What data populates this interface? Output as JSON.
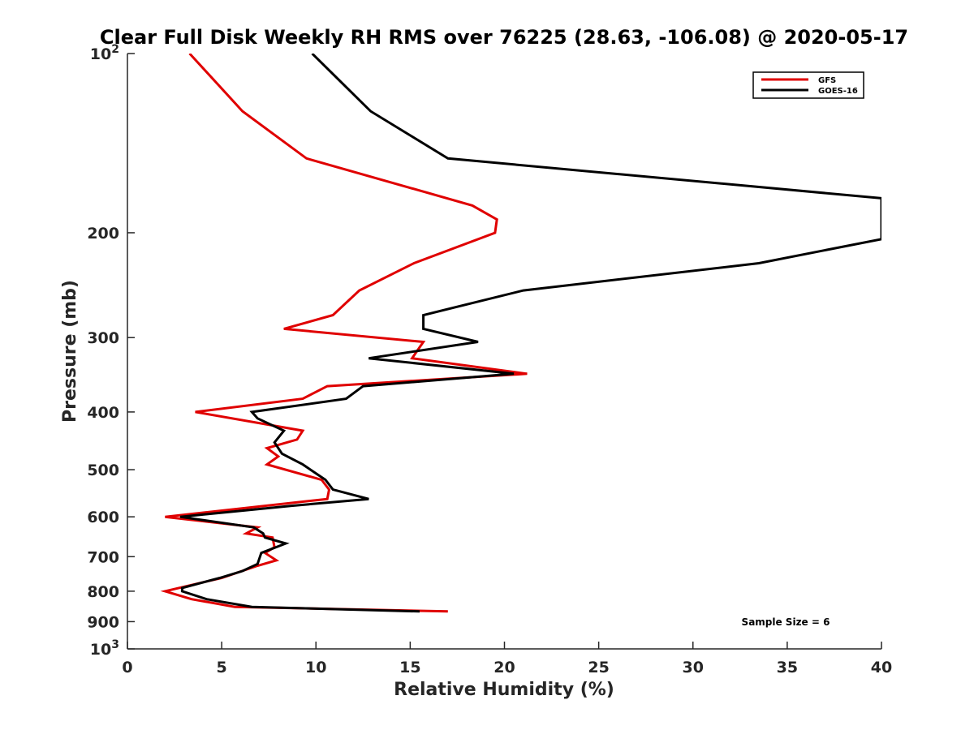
{
  "chart_data": {
    "type": "line",
    "title": "Clear Full Disk Weekly RH RMS over 76225 (28.63, -106.08) @ 2020-05-17",
    "xlabel": "Relative Humidity (%)",
    "ylabel": "Pressure (mb)",
    "xlim": [
      0,
      40
    ],
    "ylim": [
      100,
      1000
    ],
    "y_scale": "log",
    "y_reversed": true,
    "grid": false,
    "legend_position": "top-right",
    "x_ticks": [
      "0",
      "5",
      "10",
      "15",
      "20",
      "25",
      "30",
      "35",
      "40"
    ],
    "y_ticks": [
      {
        "value": 100,
        "base": "10",
        "exp": "2"
      },
      {
        "value": 200,
        "label": "200"
      },
      {
        "value": 300,
        "label": "300"
      },
      {
        "value": 400,
        "label": "400"
      },
      {
        "value": 500,
        "label": "500"
      },
      {
        "value": 600,
        "label": "600"
      },
      {
        "value": 700,
        "label": "700"
      },
      {
        "value": 800,
        "label": "800"
      },
      {
        "value": 900,
        "label": "900"
      },
      {
        "value": 1000,
        "base": "10",
        "exp": "3"
      }
    ],
    "annotation": "Sample Size = 6",
    "series": [
      {
        "name": "GFS",
        "color": "#e00000",
        "points": [
          [
            3.3,
            100
          ],
          [
            6.1,
            125
          ],
          [
            9.5,
            150
          ],
          [
            18.3,
            180
          ],
          [
            19.6,
            190
          ],
          [
            19.5,
            200
          ],
          [
            15.2,
            225
          ],
          [
            12.3,
            250
          ],
          [
            10.9,
            275
          ],
          [
            8.3,
            290
          ],
          [
            15.7,
            305
          ],
          [
            15.1,
            325
          ],
          [
            21.2,
            345
          ],
          [
            10.6,
            362
          ],
          [
            9.3,
            380
          ],
          [
            3.6,
            400
          ],
          [
            9.3,
            430
          ],
          [
            9.0,
            445
          ],
          [
            7.4,
            460
          ],
          [
            8.0,
            475
          ],
          [
            7.4,
            490
          ],
          [
            10.3,
            520
          ],
          [
            10.7,
            540
          ],
          [
            10.6,
            560
          ],
          [
            2.0,
            600
          ],
          [
            6.9,
            625
          ],
          [
            6.3,
            640
          ],
          [
            7.7,
            650
          ],
          [
            7.8,
            675
          ],
          [
            7.3,
            690
          ],
          [
            7.9,
            710
          ],
          [
            6.9,
            725
          ],
          [
            5.0,
            760
          ],
          [
            2.0,
            800
          ],
          [
            3.4,
            825
          ],
          [
            5.7,
            850
          ],
          [
            17.0,
            865
          ]
        ]
      },
      {
        "name": "GOES-16",
        "color": "#000000",
        "points": [
          [
            9.8,
            100
          ],
          [
            12.9,
            125
          ],
          [
            17.0,
            150
          ],
          [
            40.0,
            175
          ],
          [
            40.0,
            205
          ],
          [
            33.5,
            225
          ],
          [
            21.0,
            250
          ],
          [
            15.7,
            275
          ],
          [
            15.7,
            290
          ],
          [
            18.6,
            305
          ],
          [
            12.8,
            325
          ],
          [
            20.5,
            345
          ],
          [
            12.5,
            362
          ],
          [
            11.6,
            380
          ],
          [
            6.6,
            400
          ],
          [
            6.9,
            410
          ],
          [
            8.3,
            430
          ],
          [
            7.8,
            450
          ],
          [
            8.2,
            470
          ],
          [
            9.3,
            490
          ],
          [
            10.5,
            520
          ],
          [
            10.9,
            540
          ],
          [
            12.8,
            560
          ],
          [
            8.7,
            575
          ],
          [
            2.8,
            600
          ],
          [
            6.7,
            625
          ],
          [
            7.2,
            640
          ],
          [
            7.3,
            650
          ],
          [
            8.4,
            665
          ],
          [
            7.1,
            690
          ],
          [
            6.9,
            720
          ],
          [
            6.1,
            740
          ],
          [
            4.9,
            760
          ],
          [
            2.9,
            790
          ],
          [
            2.9,
            800
          ],
          [
            4.2,
            825
          ],
          [
            6.6,
            850
          ],
          [
            15.5,
            865
          ]
        ]
      }
    ]
  }
}
